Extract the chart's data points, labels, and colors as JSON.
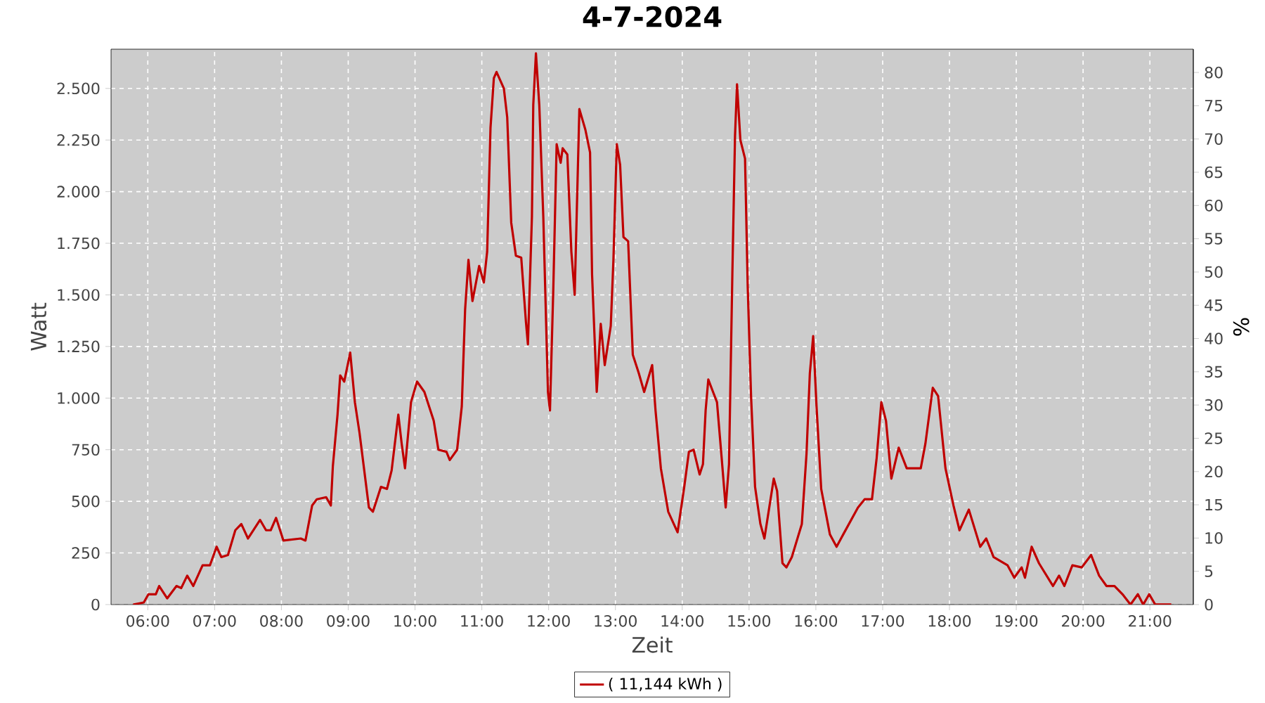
{
  "chart_data": {
    "type": "line",
    "title": "4-7-2024",
    "xlabel": "Zeit",
    "ylabel": "Watt",
    "y2label": "%",
    "xlim": [
      5.45,
      21.65
    ],
    "xticks": [
      {
        "value": 6,
        "label": "06:00"
      },
      {
        "value": 7,
        "label": "07:00"
      },
      {
        "value": 8,
        "label": "08:00"
      },
      {
        "value": 9,
        "label": "09:00"
      },
      {
        "value": 10,
        "label": "10:00"
      },
      {
        "value": 11,
        "label": "11:00"
      },
      {
        "value": 12,
        "label": "12:00"
      },
      {
        "value": 13,
        "label": "13:00"
      },
      {
        "value": 14,
        "label": "14:00"
      },
      {
        "value": 15,
        "label": "15:00"
      },
      {
        "value": 16,
        "label": "16:00"
      },
      {
        "value": 17,
        "label": "17:00"
      },
      {
        "value": 18,
        "label": "18:00"
      },
      {
        "value": 19,
        "label": "19:00"
      },
      {
        "value": 20,
        "label": "20:00"
      },
      {
        "value": 21,
        "label": "21:00"
      }
    ],
    "ylim": [
      0,
      2690
    ],
    "yticks": [
      0,
      250,
      500,
      750,
      {
        "value": 1000,
        "label": "1.000"
      },
      {
        "value": 1250,
        "label": "1.250"
      },
      {
        "value": 1500,
        "label": "1.500"
      },
      {
        "value": 1750,
        "label": "1.750"
      },
      {
        "value": 2000,
        "label": "2.000"
      },
      {
        "value": 2250,
        "label": "2.250"
      },
      {
        "value": 2500,
        "label": "2.500"
      }
    ],
    "y2lim": [
      0,
      83.5
    ],
    "y2ticks": [
      0,
      5,
      10,
      15,
      20,
      25,
      30,
      35,
      40,
      45,
      50,
      55,
      60,
      65,
      70,
      75,
      80
    ],
    "grid": true,
    "legend": "bottom",
    "series": [
      {
        "name": "( 11,144 kWh )",
        "color": "#c00000",
        "x": [
          5.78,
          5.94,
          6.01,
          6.12,
          6.17,
          6.29,
          6.43,
          6.5,
          6.59,
          6.68,
          6.82,
          6.93,
          7.03,
          7.1,
          7.2,
          7.31,
          7.4,
          7.5,
          7.68,
          7.77,
          7.84,
          7.92,
          8.03,
          8.29,
          8.36,
          8.46,
          8.53,
          8.67,
          8.74,
          8.77,
          8.84,
          8.88,
          8.94,
          9.03,
          9.1,
          9.17,
          9.31,
          9.37,
          9.49,
          9.58,
          9.65,
          9.75,
          9.8,
          9.85,
          9.94,
          10.03,
          10.14,
          10.28,
          10.35,
          10.47,
          10.52,
          10.63,
          10.7,
          10.75,
          10.8,
          10.86,
          10.96,
          11.03,
          11.08,
          11.13,
          11.18,
          11.22,
          11.33,
          11.38,
          11.44,
          11.51,
          11.59,
          11.66,
          11.69,
          11.75,
          11.77,
          11.81,
          11.86,
          11.92,
          11.99,
          12.02,
          12.07,
          12.12,
          12.18,
          12.21,
          12.28,
          12.34,
          12.39,
          12.46,
          12.55,
          12.62,
          12.65,
          12.72,
          12.78,
          12.84,
          12.93,
          12.97,
          13.02,
          13.07,
          13.12,
          13.19,
          13.26,
          13.35,
          13.43,
          13.55,
          13.6,
          13.68,
          13.79,
          13.93,
          14.03,
          14.1,
          14.17,
          14.26,
          14.31,
          14.35,
          14.39,
          14.52,
          14.59,
          14.65,
          14.7,
          14.75,
          14.79,
          14.82,
          14.87,
          14.94,
          14.98,
          15.03,
          15.09,
          15.17,
          15.23,
          15.37,
          15.42,
          15.5,
          15.56,
          15.64,
          15.79,
          15.86,
          15.91,
          15.96,
          16.01,
          16.08,
          16.21,
          16.31,
          16.41,
          16.63,
          16.73,
          16.84,
          16.91,
          16.98,
          17.05,
          17.13,
          17.24,
          17.36,
          17.57,
          17.64,
          17.75,
          17.83,
          17.94,
          18.06,
          18.15,
          18.29,
          18.46,
          18.55,
          18.66,
          18.87,
          18.97,
          19.08,
          19.13,
          19.23,
          19.34,
          19.55,
          19.64,
          19.72,
          19.84,
          19.98,
          20.12,
          20.24,
          20.35,
          20.47,
          20.59,
          20.71,
          20.82,
          20.9,
          20.99,
          21.08,
          21.32
        ],
        "values": [
          0,
          10,
          50,
          50,
          90,
          30,
          90,
          80,
          140,
          90,
          190,
          190,
          280,
          230,
          240,
          360,
          390,
          320,
          410,
          360,
          360,
          420,
          310,
          320,
          310,
          480,
          510,
          520,
          480,
          670,
          920,
          1110,
          1080,
          1220,
          980,
          830,
          470,
          450,
          570,
          560,
          650,
          920,
          780,
          660,
          980,
          1080,
          1030,
          890,
          750,
          740,
          700,
          750,
          960,
          1430,
          1670,
          1470,
          1640,
          1560,
          1710,
          2310,
          2550,
          2580,
          2500,
          2360,
          1850,
          1690,
          1680,
          1370,
          1260,
          1880,
          2420,
          2670,
          2420,
          1880,
          1030,
          940,
          1530,
          2230,
          2140,
          2210,
          2180,
          1710,
          1500,
          2400,
          2300,
          2190,
          1600,
          1030,
          1360,
          1160,
          1350,
          1670,
          2230,
          2130,
          1780,
          1760,
          1210,
          1120,
          1030,
          1160,
          940,
          660,
          450,
          350,
          570,
          740,
          750,
          630,
          680,
          940,
          1090,
          980,
          710,
          470,
          680,
          1600,
          2270,
          2520,
          2250,
          2160,
          1540,
          1010,
          570,
          390,
          320,
          610,
          550,
          200,
          180,
          230,
          390,
          730,
          1120,
          1300,
          960,
          560,
          340,
          280,
          340,
          470,
          510,
          510,
          710,
          980,
          890,
          610,
          760,
          660,
          660,
          780,
          1050,
          1010,
          660,
          480,
          360,
          460,
          280,
          320,
          230,
          190,
          130,
          180,
          130,
          280,
          200,
          90,
          140,
          90,
          190,
          180,
          240,
          140,
          90,
          90,
          50,
          0,
          50,
          0,
          50,
          0,
          0
        ]
      }
    ]
  }
}
